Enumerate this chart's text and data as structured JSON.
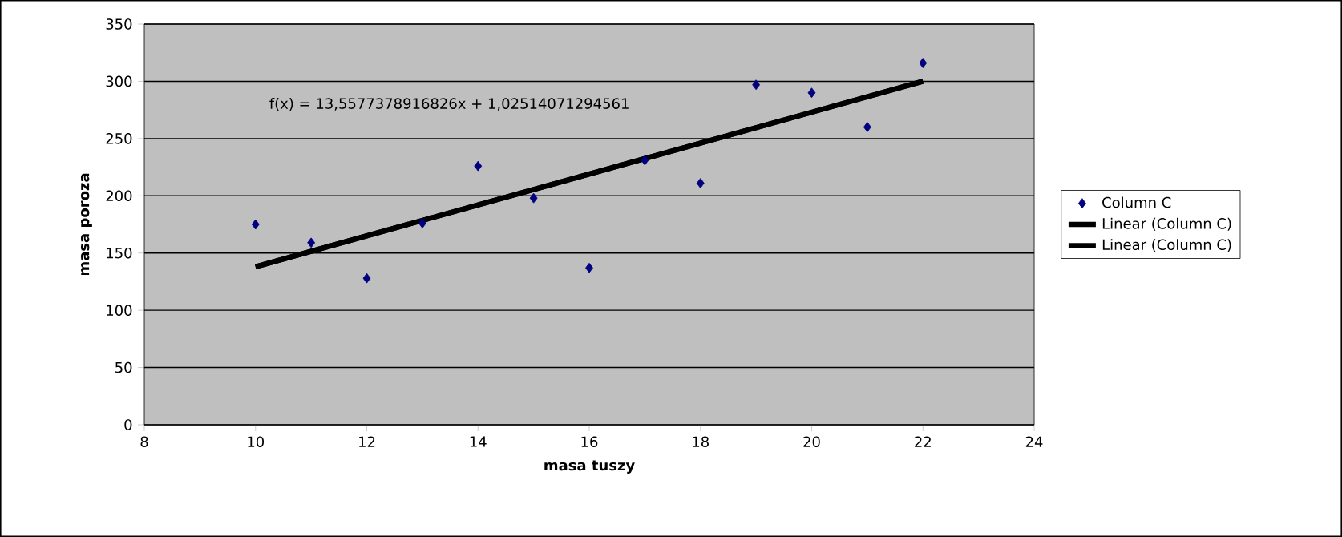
{
  "chart_data": {
    "type": "scatter",
    "xlabel": "masa tuszy",
    "ylabel": "masa poroza",
    "annotations": [
      "f(x) = 13,5577378916826x + 1,02514071294561"
    ],
    "series": [
      {
        "name": "Column C",
        "color": "#000080",
        "marker": "diamond",
        "x": [
          10,
          11,
          12,
          13,
          14,
          15,
          16,
          17,
          18,
          19,
          20,
          21,
          22
        ],
        "values": [
          175,
          159,
          128,
          176,
          226,
          198,
          137,
          231,
          211,
          297,
          290,
          260,
          316
        ]
      },
      {
        "name": "Linear (Column C)",
        "color": "#000000",
        "type": "line",
        "marker": "none",
        "x": [
          10,
          22
        ],
        "values": [
          138,
          300
        ]
      },
      {
        "name": "Linear (Column C)",
        "color": "#000000",
        "type": "line",
        "marker": "none",
        "x": [
          10,
          22
        ],
        "values": [
          138,
          300
        ]
      }
    ],
    "xlim": [
      8,
      24
    ],
    "xticks": [
      8,
      10,
      12,
      14,
      16,
      18,
      20,
      22,
      24
    ],
    "ylim": [
      0,
      350
    ],
    "yticks": [
      0,
      50,
      100,
      150,
      200,
      250,
      300,
      350
    ],
    "grid": "y",
    "legend": "right"
  }
}
